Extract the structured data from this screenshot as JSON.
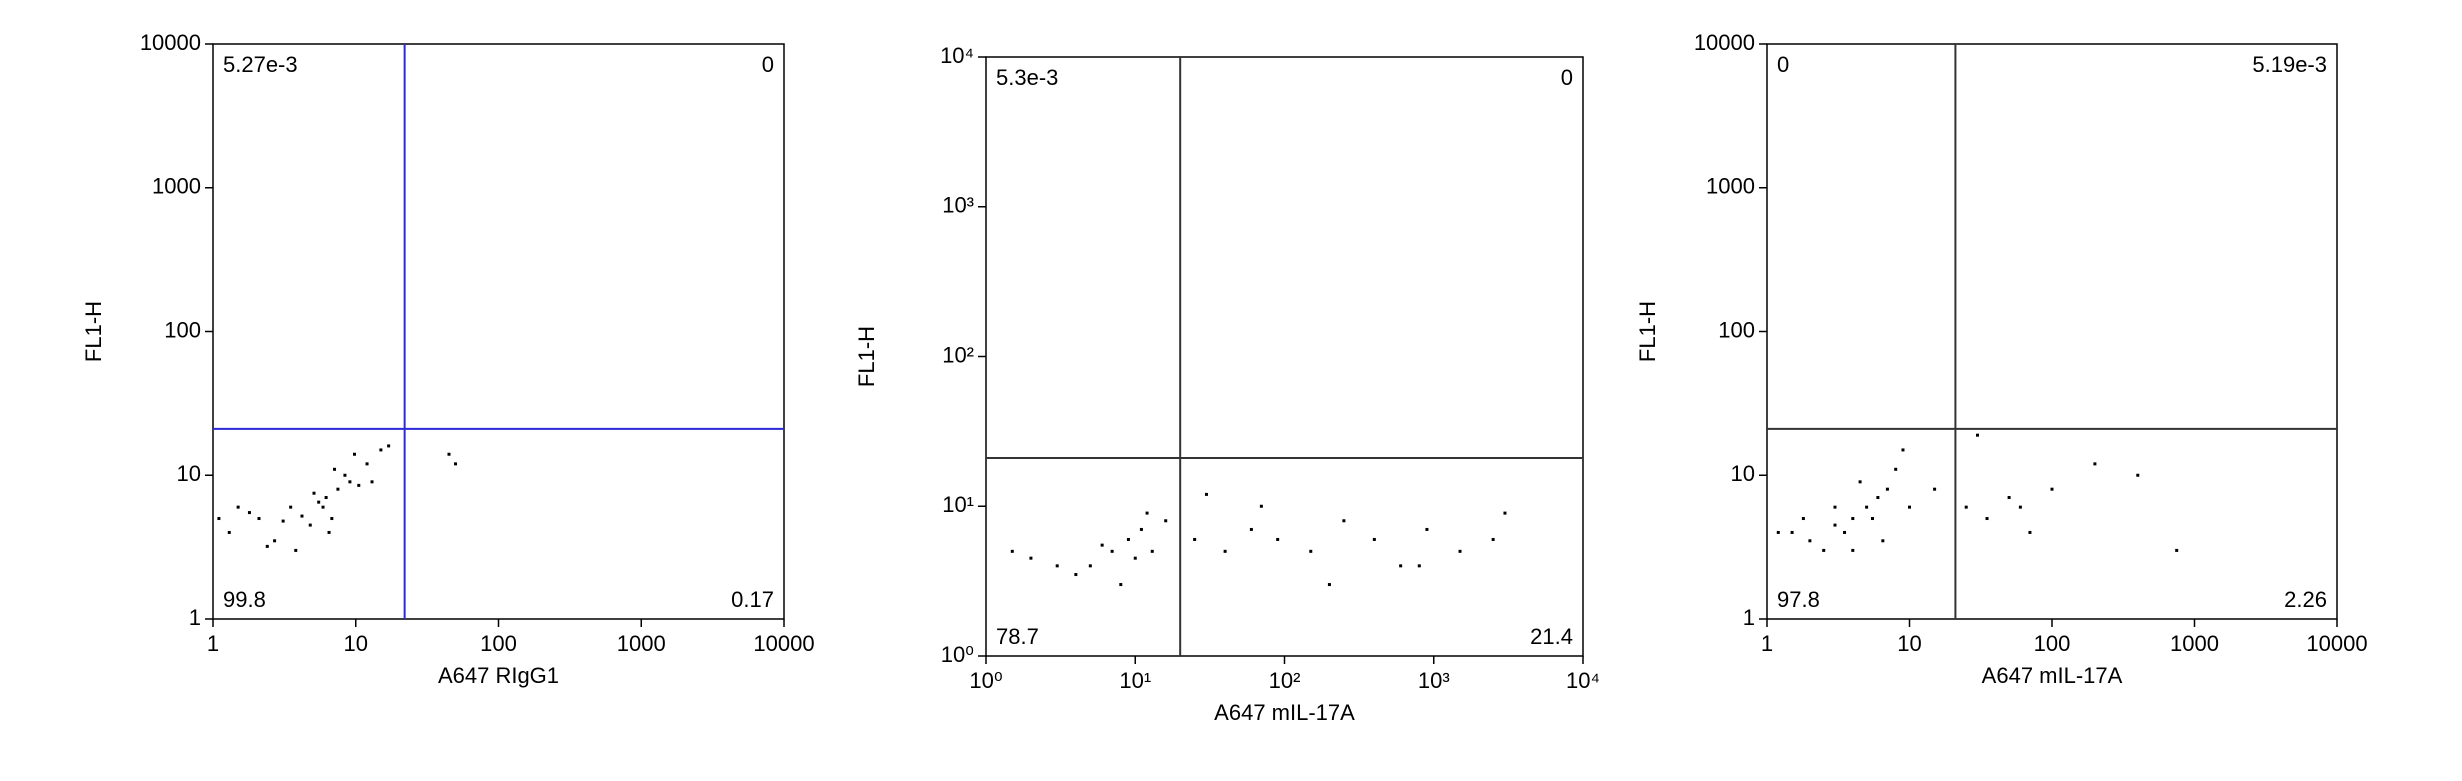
{
  "chart_data": [
    {
      "type": "scatter",
      "xlabel": "A647 RIgG1",
      "ylabel": "FL1-H",
      "xlog": true,
      "ylog": true,
      "xlim": [
        1,
        10000
      ],
      "ylim": [
        1,
        10000
      ],
      "xticks": [
        1,
        10,
        100,
        1000,
        10000
      ],
      "yticks": [
        1,
        10,
        100,
        1000,
        10000
      ],
      "gate": {
        "x": 22,
        "y": 21,
        "color": "#2a2ad8"
      },
      "quadrant_values": [
        {
          "value": 0.00527,
          "label": "5.27e-3"
        },
        0,
        99.8,
        0.17
      ],
      "series": [
        {
          "color": "#000000",
          "x": [
            2.1,
            3.5,
            4.8,
            6.2,
            7.5,
            9.1,
            1.3,
            1.8,
            2.7,
            5.5,
            8.4,
            12,
            15,
            3.1,
            4.2,
            5.9,
            6.8,
            10.5,
            1.5,
            2.4,
            7.1,
            13,
            17,
            45,
            50,
            3.8,
            5.1,
            9.8,
            1.1,
            6.5
          ],
          "values": [
            5,
            6,
            4.5,
            7,
            8,
            9,
            4,
            5.5,
            3.5,
            6.5,
            10,
            12,
            15,
            4.8,
            5.2,
            6,
            5,
            8.5,
            6,
            3.2,
            11,
            9,
            16,
            14,
            12,
            3,
            7.5,
            14,
            5,
            4
          ]
        }
      ]
    },
    {
      "type": "scatter",
      "xlabel": "A647 mIL-17A",
      "ylabel": "FL1-H",
      "xlog": true,
      "ylog": true,
      "xlim": [
        1,
        10000
      ],
      "ylim": [
        1,
        10000
      ],
      "xticks": [
        {
          "value": 1,
          "label": "10⁰"
        },
        {
          "value": 10,
          "label": "10¹"
        },
        {
          "value": 100,
          "label": "10²"
        },
        {
          "value": 1000,
          "label": "10³"
        },
        {
          "value": 10000,
          "label": "10⁴"
        }
      ],
      "yticks": [
        {
          "value": 1,
          "label": "10⁰"
        },
        {
          "value": 10,
          "label": "10¹"
        },
        {
          "value": 100,
          "label": "10²"
        },
        {
          "value": 1000,
          "label": "10³"
        },
        {
          "value": 10000,
          "label": "10⁴"
        }
      ],
      "gate": {
        "x": 20,
        "y": 21,
        "color": "#333333"
      },
      "quadrant_values": [
        {
          "value": 0.0053,
          "label": "5.3e-3"
        },
        0,
        78.7,
        21.4
      ],
      "series": [
        {
          "color": "#000000",
          "x": [
            5,
            7,
            9,
            11,
            13,
            16,
            8,
            10,
            6,
            12,
            3,
            4,
            2,
            25,
            40,
            60,
            90,
            150,
            250,
            400,
            600,
            900,
            1500,
            2500,
            3000,
            30,
            70,
            200,
            800,
            1.5
          ],
          "values": [
            4,
            5,
            6,
            7,
            5,
            8,
            3,
            4.5,
            5.5,
            9,
            4,
            3.5,
            4.5,
            6,
            5,
            7,
            6,
            5,
            8,
            6,
            4,
            7,
            5,
            6,
            9,
            12,
            10,
            3,
            4,
            5
          ]
        }
      ]
    },
    {
      "type": "scatter",
      "xlabel": "A647 mIL-17A",
      "ylabel": "FL1-H",
      "xlog": true,
      "ylog": true,
      "xlim": [
        1,
        10000
      ],
      "ylim": [
        1,
        10000
      ],
      "xticks": [
        1,
        10,
        100,
        1000,
        10000
      ],
      "yticks": [
        1,
        10,
        100,
        1000,
        10000
      ],
      "gate": {
        "x": 21,
        "y": 21,
        "color": "#333333"
      },
      "quadrant_values": [
        0,
        {
          "value": 0.00519,
          "label": "5.19e-3"
        },
        97.8,
        2.26
      ],
      "series": [
        {
          "color": "#000000",
          "x": [
            1.5,
            2,
            3,
            4,
            5,
            6,
            7,
            2.5,
            3.5,
            4.5,
            1.2,
            5.5,
            8,
            9,
            6.5,
            10,
            15,
            25,
            35,
            50,
            70,
            100,
            200,
            400,
            750,
            30,
            60,
            1.8,
            3,
            4
          ],
          "values": [
            4,
            3.5,
            4.5,
            5,
            6,
            7,
            8,
            3,
            4,
            9,
            4,
            5,
            11,
            15,
            3.5,
            6,
            8,
            6,
            5,
            7,
            4,
            8,
            12,
            10,
            3,
            19,
            6,
            5,
            6,
            3
          ]
        }
      ]
    }
  ]
}
